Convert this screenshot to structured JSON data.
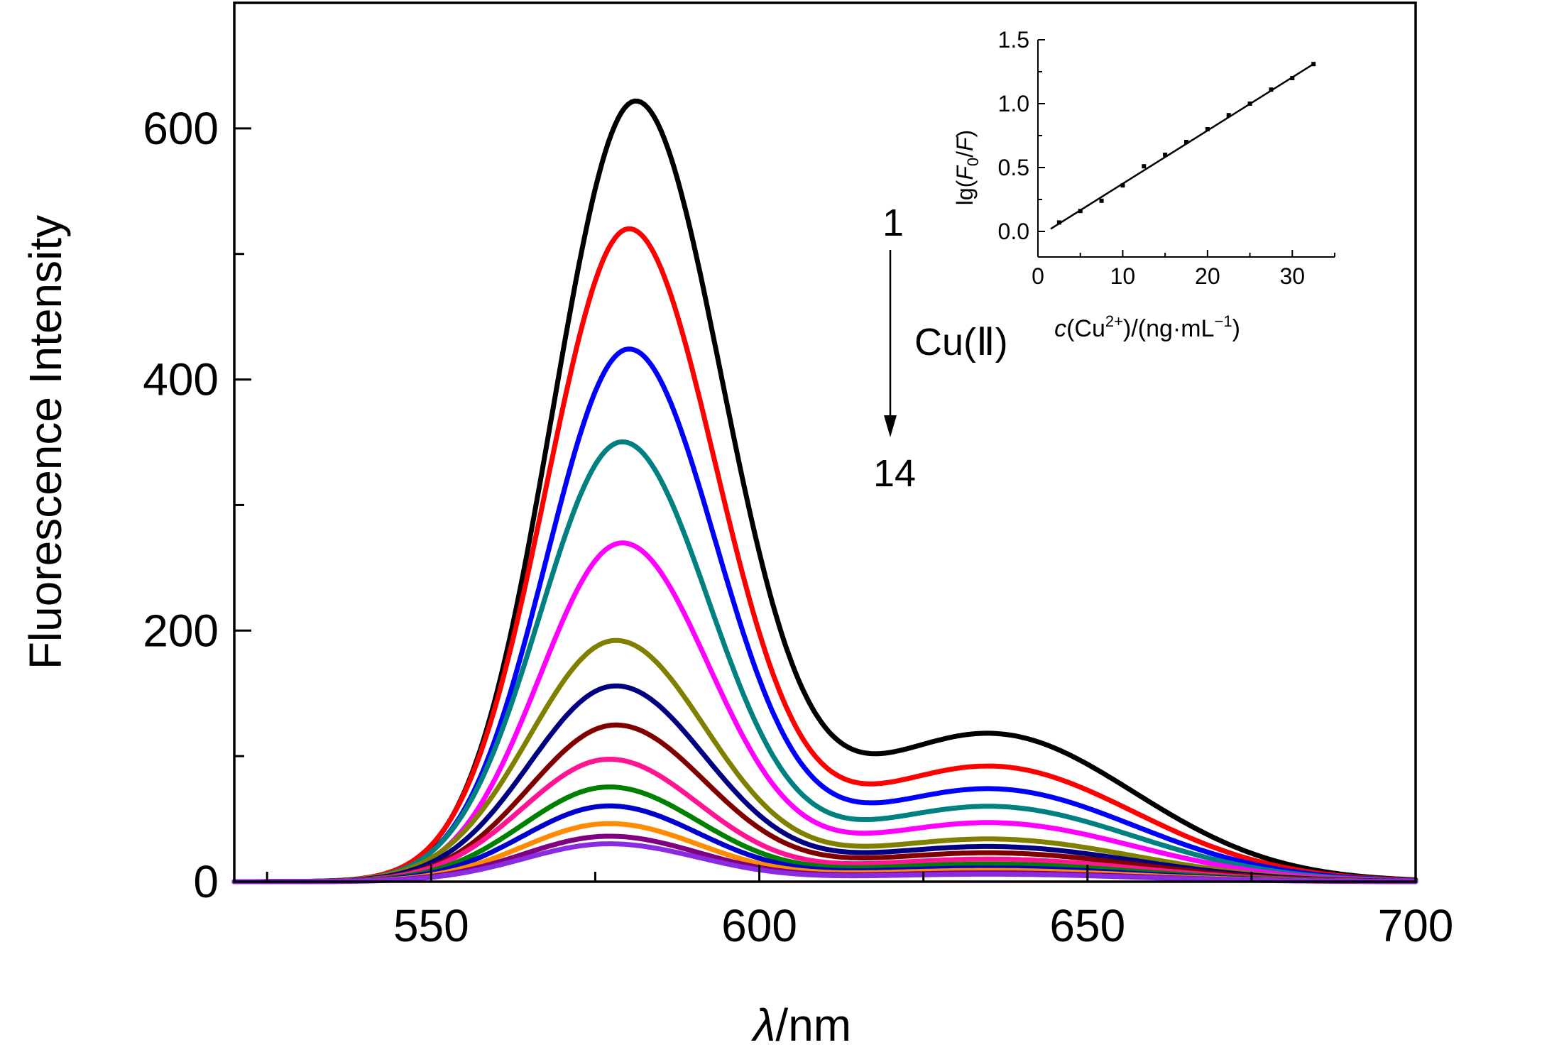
{
  "chart_data": [
    {
      "type": "line",
      "xlabel_italic": "λ",
      "xlabel_rest": "/nm",
      "ylabel": "Fluorescence Intensity",
      "xlim": [
        520,
        700
      ],
      "ylim": [
        0,
        700
      ],
      "x_ticks": [
        550,
        600,
        650,
        700
      ],
      "y_ticks": [
        0,
        200,
        400,
        600
      ],
      "grid": false,
      "annotation": {
        "start_label": "1",
        "end_label": "14",
        "label": "Cu(Ⅱ)",
        "direction": "down"
      },
      "shoulder_x": 635,
      "series": [
        {
          "color": "#000000",
          "peak_x": 581,
          "peak": 616,
          "shoulder": 118,
          "width_left": 12.5,
          "width_right": 13.5
        },
        {
          "color": "#ff0000",
          "peak_x": 580,
          "peak": 516,
          "shoulder": 92,
          "width_left": 12.5,
          "width_right": 13.5
        },
        {
          "color": "#0000ff",
          "peak_x": 580,
          "peak": 421,
          "shoulder": 74,
          "width_left": 12.5,
          "width_right": 13.5
        },
        {
          "color": "#008080",
          "peak_x": 579,
          "peak": 348,
          "shoulder": 60,
          "width_left": 12.5,
          "width_right": 13.5
        },
        {
          "color": "#ff00ff",
          "peak_x": 579,
          "peak": 268,
          "shoulder": 47,
          "width_left": 12.5,
          "width_right": 13.5
        },
        {
          "color": "#808000",
          "peak_x": 578,
          "peak": 191,
          "shoulder": 34,
          "width_left": 13,
          "width_right": 14
        },
        {
          "color": "#000080",
          "peak_x": 578,
          "peak": 155,
          "shoulder": 28,
          "width_left": 13,
          "width_right": 14
        },
        {
          "color": "#800000",
          "peak_x": 578,
          "peak": 124,
          "shoulder": 23,
          "width_left": 13,
          "width_right": 14
        },
        {
          "color": "#ff1493",
          "peak_x": 577,
          "peak": 97,
          "shoulder": 18,
          "width_left": 13,
          "width_right": 14
        },
        {
          "color": "#008000",
          "peak_x": 577,
          "peak": 75,
          "shoulder": 14,
          "width_left": 13,
          "width_right": 14
        },
        {
          "color": "#0000cd",
          "peak_x": 577,
          "peak": 60,
          "shoulder": 11,
          "width_left": 13,
          "width_right": 14
        },
        {
          "color": "#ff8c00",
          "peak_x": 577,
          "peak": 46,
          "shoulder": 9,
          "width_left": 13,
          "width_right": 14
        },
        {
          "color": "#800080",
          "peak_x": 577,
          "peak": 36,
          "shoulder": 7,
          "width_left": 13,
          "width_right": 14
        },
        {
          "color": "#8a2be2",
          "peak_x": 577,
          "peak": 30,
          "shoulder": 6,
          "width_left": 13,
          "width_right": 14
        }
      ]
    },
    {
      "type": "scatter",
      "inset": true,
      "xlabel_italic": "c",
      "xlabel_rest": "(Cu",
      "xlabel_sup": "2+",
      "xlabel_rest2": ")/(ng·mL",
      "xlabel_sup2": "−1",
      "xlabel_end": ")",
      "ylabel_parts": [
        "lg(",
        "F",
        "0",
        "/",
        "F",
        ")"
      ],
      "xlim": [
        0,
        35
      ],
      "ylim": [
        -0.2,
        1.5
      ],
      "x_ticks": [
        0,
        10,
        20,
        30
      ],
      "y_ticks": [
        0.0,
        0.5,
        1.0,
        1.5
      ],
      "y_tick_labels": [
        "0.0",
        "0.5",
        "1.0",
        "1.5"
      ],
      "x": [
        2.5,
        5,
        7.5,
        10,
        12.5,
        15,
        17.5,
        20,
        22.5,
        25,
        27.5,
        30,
        32.5
      ],
      "y": [
        0.07,
        0.16,
        0.24,
        0.36,
        0.51,
        0.6,
        0.7,
        0.8,
        0.91,
        1.0,
        1.11,
        1.2,
        1.31
      ],
      "fit": {
        "x": [
          1.5,
          32.5
        ],
        "y": [
          0.02,
          1.31
        ]
      }
    }
  ]
}
